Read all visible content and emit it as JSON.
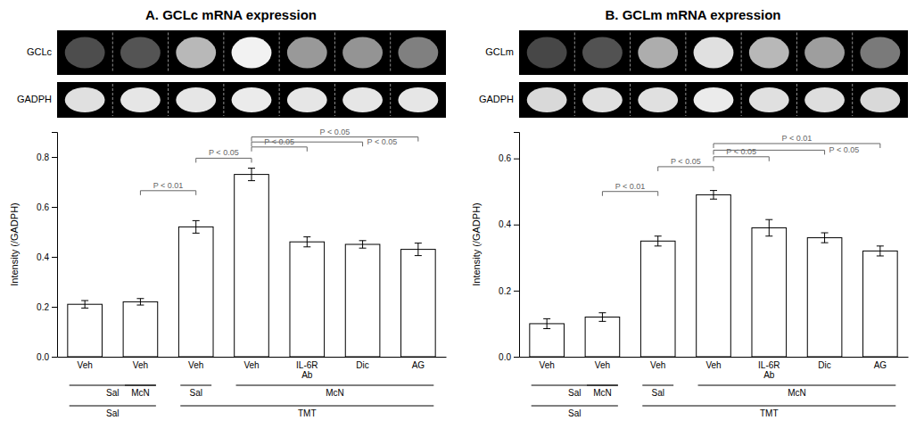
{
  "chart_data": [
    {
      "type": "bar",
      "title": "A. GCLc mRNA expression",
      "y_label": "Intensity (/GADPH)",
      "categories": [
        "Veh",
        "Veh",
        "Veh",
        "Veh",
        "IL-6R\nAb",
        "Dic",
        "AG"
      ],
      "values": [
        0.21,
        0.22,
        0.52,
        0.73,
        0.46,
        0.45,
        0.43
      ],
      "errors": [
        0.015,
        0.013,
        0.025,
        0.025,
        0.02,
        0.015,
        0.025
      ],
      "color": "#ffffff",
      "ylim": [
        0,
        0.9
      ],
      "yticks": [
        {
          "value": 0,
          "label": "0.0"
        },
        0.2,
        0.4,
        0.6,
        0.8
      ],
      "annotations": [
        {
          "from": 1,
          "to": 2,
          "y": 0.665,
          "label": "P < 0.01"
        },
        {
          "from": 2,
          "to": 3,
          "y": 0.795,
          "label": "P < 0.05"
        },
        {
          "from": 3,
          "to": 4,
          "y": 0.84,
          "label": "P < 0.05"
        },
        {
          "from": 3,
          "to": 5,
          "y": 0.86,
          "label": "P < 0.05"
        },
        {
          "from": 3,
          "to": 6,
          "y": 0.88,
          "label": "P < 0.05"
        }
      ],
      "group_rows": [
        [
          {
            "from": 0,
            "to": 1,
            "label": "Sal"
          },
          {
            "from": 1,
            "to": 1,
            "label": "McN"
          },
          {
            "from": 2,
            "to": 2,
            "label": "Sal"
          },
          {
            "from": 3,
            "to": 6,
            "label": "McN"
          }
        ],
        [
          {
            "from": 0,
            "to": 1,
            "label": "Sal"
          },
          {
            "from": 2,
            "to": 6,
            "label": "TMT"
          }
        ]
      ],
      "gel_rows": [
        {
          "label": "GCLc",
          "values": [
            0.3,
            0.33,
            0.72,
            0.95,
            0.6,
            0.58,
            0.5
          ]
        },
        {
          "label": "GADPH",
          "values": [
            0.88,
            0.9,
            0.9,
            0.92,
            0.9,
            0.9,
            0.9
          ]
        }
      ]
    },
    {
      "type": "bar",
      "title": "B. GCLm mRNA expression",
      "y_label": "Intensity (/GADPH)",
      "categories": [
        "Veh",
        "Veh",
        "Veh",
        "Veh",
        "IL-6R\nAb",
        "Dic",
        "AG"
      ],
      "values": [
        0.1,
        0.12,
        0.35,
        0.49,
        0.39,
        0.36,
        0.32
      ],
      "errors": [
        0.015,
        0.013,
        0.015,
        0.013,
        0.025,
        0.015,
        0.015
      ],
      "color": "#ffffff",
      "ylim": [
        0,
        0.68
      ],
      "yticks": [
        {
          "value": 0,
          "label": "0.0"
        },
        0.2,
        0.4,
        0.6
      ],
      "annotations": [
        {
          "from": 1,
          "to": 2,
          "y": 0.5,
          "label": "P < 0.01"
        },
        {
          "from": 2,
          "to": 3,
          "y": 0.575,
          "label": "P < 0.05"
        },
        {
          "from": 3,
          "to": 4,
          "y": 0.605,
          "label": "P < 0.05"
        },
        {
          "from": 3,
          "to": 5,
          "y": 0.625,
          "label": "P < 0.05"
        },
        {
          "from": 3,
          "to": 6,
          "y": 0.645,
          "label": "P < 0.01"
        }
      ],
      "group_rows": [
        [
          {
            "from": 0,
            "to": 1,
            "label": "Sal"
          },
          {
            "from": 1,
            "to": 1,
            "label": "McN"
          },
          {
            "from": 2,
            "to": 2,
            "label": "Sal"
          },
          {
            "from": 3,
            "to": 6,
            "label": "McN"
          }
        ],
        [
          {
            "from": 0,
            "to": 1,
            "label": "Sal"
          },
          {
            "from": 2,
            "to": 6,
            "label": "TMT"
          }
        ]
      ],
      "gel_rows": [
        {
          "label": "GCLm",
          "values": [
            0.28,
            0.32,
            0.68,
            0.88,
            0.72,
            0.62,
            0.48
          ]
        },
        {
          "label": "GADPH",
          "values": [
            0.85,
            0.88,
            0.88,
            0.92,
            0.88,
            0.87,
            0.85
          ]
        }
      ]
    }
  ]
}
